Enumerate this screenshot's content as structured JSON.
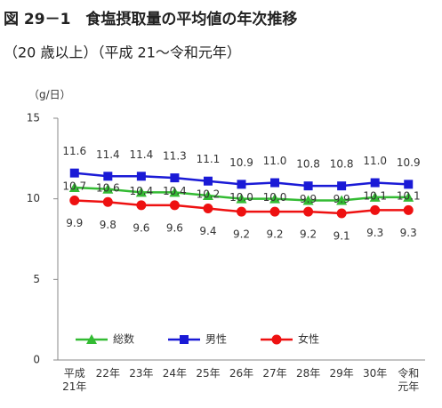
{
  "chart_data": {
    "type": "line",
    "title": "図 29－1　食塩摂取量の平均値の年次推移",
    "subtitle": "（20 歳以上）（平成 21～令和元年）",
    "y_label": "（g/日）",
    "categories": [
      "平成21年",
      "22年",
      "23年",
      "24年",
      "25年",
      "26年",
      "27年",
      "28年",
      "29年",
      "30年",
      "令和元年"
    ],
    "series": [
      {
        "name": "総数",
        "color": "#33bb33",
        "marker": "triangle",
        "label_position": "center",
        "values": [
          10.7,
          10.6,
          10.4,
          10.4,
          10.2,
          10.0,
          10.0,
          9.9,
          9.9,
          10.1,
          10.1
        ],
        "value_labels": [
          "10.7",
          "10.6",
          "10.4",
          "10.4",
          "10.2",
          "10.0",
          "10.0",
          "9.9",
          "9.9",
          "10.1",
          "10.1"
        ]
      },
      {
        "name": "男性",
        "color": "#1a1ad6",
        "marker": "square",
        "label_position": "above",
        "values": [
          11.6,
          11.4,
          11.4,
          11.3,
          11.1,
          10.9,
          11.0,
          10.8,
          10.8,
          11.0,
          10.9
        ],
        "value_labels": [
          "11.6",
          "11.4",
          "11.4",
          "11.3",
          "11.1",
          "10.9",
          "11.0",
          "10.8",
          "10.8",
          "11.0",
          "10.9"
        ]
      },
      {
        "name": "女性",
        "color": "#ee1111",
        "marker": "circle",
        "label_position": "below",
        "values": [
          9.9,
          9.8,
          9.6,
          9.6,
          9.4,
          9.2,
          9.2,
          9.2,
          9.1,
          9.3,
          9.3
        ],
        "value_labels": [
          "9.9",
          "9.8",
          "9.6",
          "9.6",
          "9.4",
          "9.2",
          "9.2",
          "9.2",
          "9.1",
          "9.3",
          "9.3"
        ]
      }
    ],
    "ylim": [
      0,
      15
    ],
    "yticks": [
      0,
      5,
      10,
      15
    ],
    "grid": false,
    "legend": "lower left"
  }
}
